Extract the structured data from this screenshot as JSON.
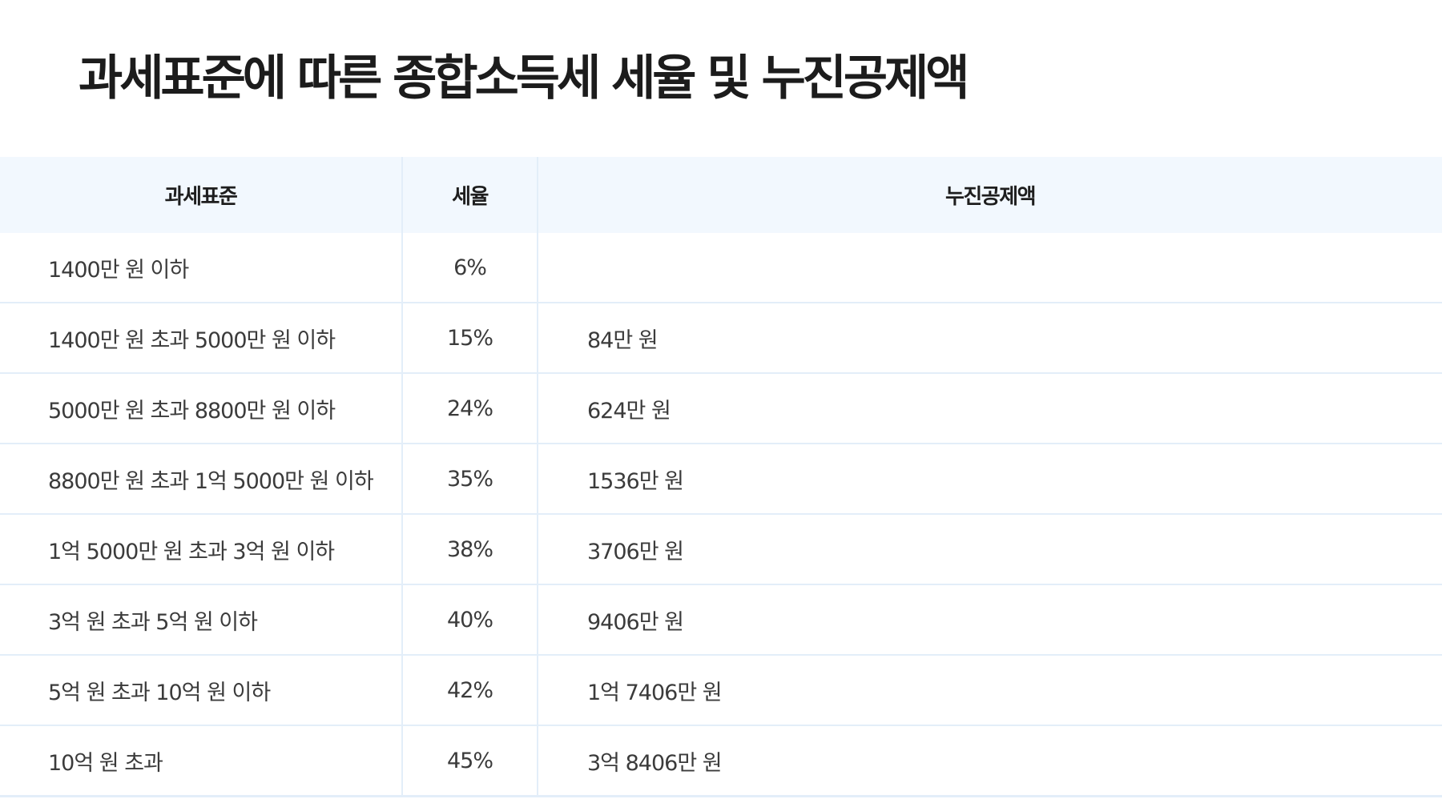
{
  "title": "과세표준에 따른 종합소득세 세율 및 누진공제액",
  "table": {
    "headers": [
      "과세표준",
      "세율",
      "누진공제액"
    ],
    "rows": [
      {
        "bracket": "1400만 원 이하",
        "rate": "6%",
        "deduction": ""
      },
      {
        "bracket": "1400만 원 초과 5000만 원 이하",
        "rate": "15%",
        "deduction": "84만 원"
      },
      {
        "bracket": "5000만 원 초과 8800만 원 이하",
        "rate": "24%",
        "deduction": "624만 원"
      },
      {
        "bracket": "8800만 원 초과 1억 5000만 원 이하",
        "rate": "35%",
        "deduction": "1536만 원"
      },
      {
        "bracket": "1억 5000만 원 초과 3억 원 이하",
        "rate": "38%",
        "deduction": "3706만 원"
      },
      {
        "bracket": "3억 원 초과 5억 원 이하",
        "rate": "40%",
        "deduction": "9406만 원"
      },
      {
        "bracket": "5억 원 초과 10억 원 이하",
        "rate": "42%",
        "deduction": "1억 7406만 원"
      },
      {
        "bracket": "10억 원 초과",
        "rate": "45%",
        "deduction": "3억 8406만 원"
      }
    ]
  }
}
